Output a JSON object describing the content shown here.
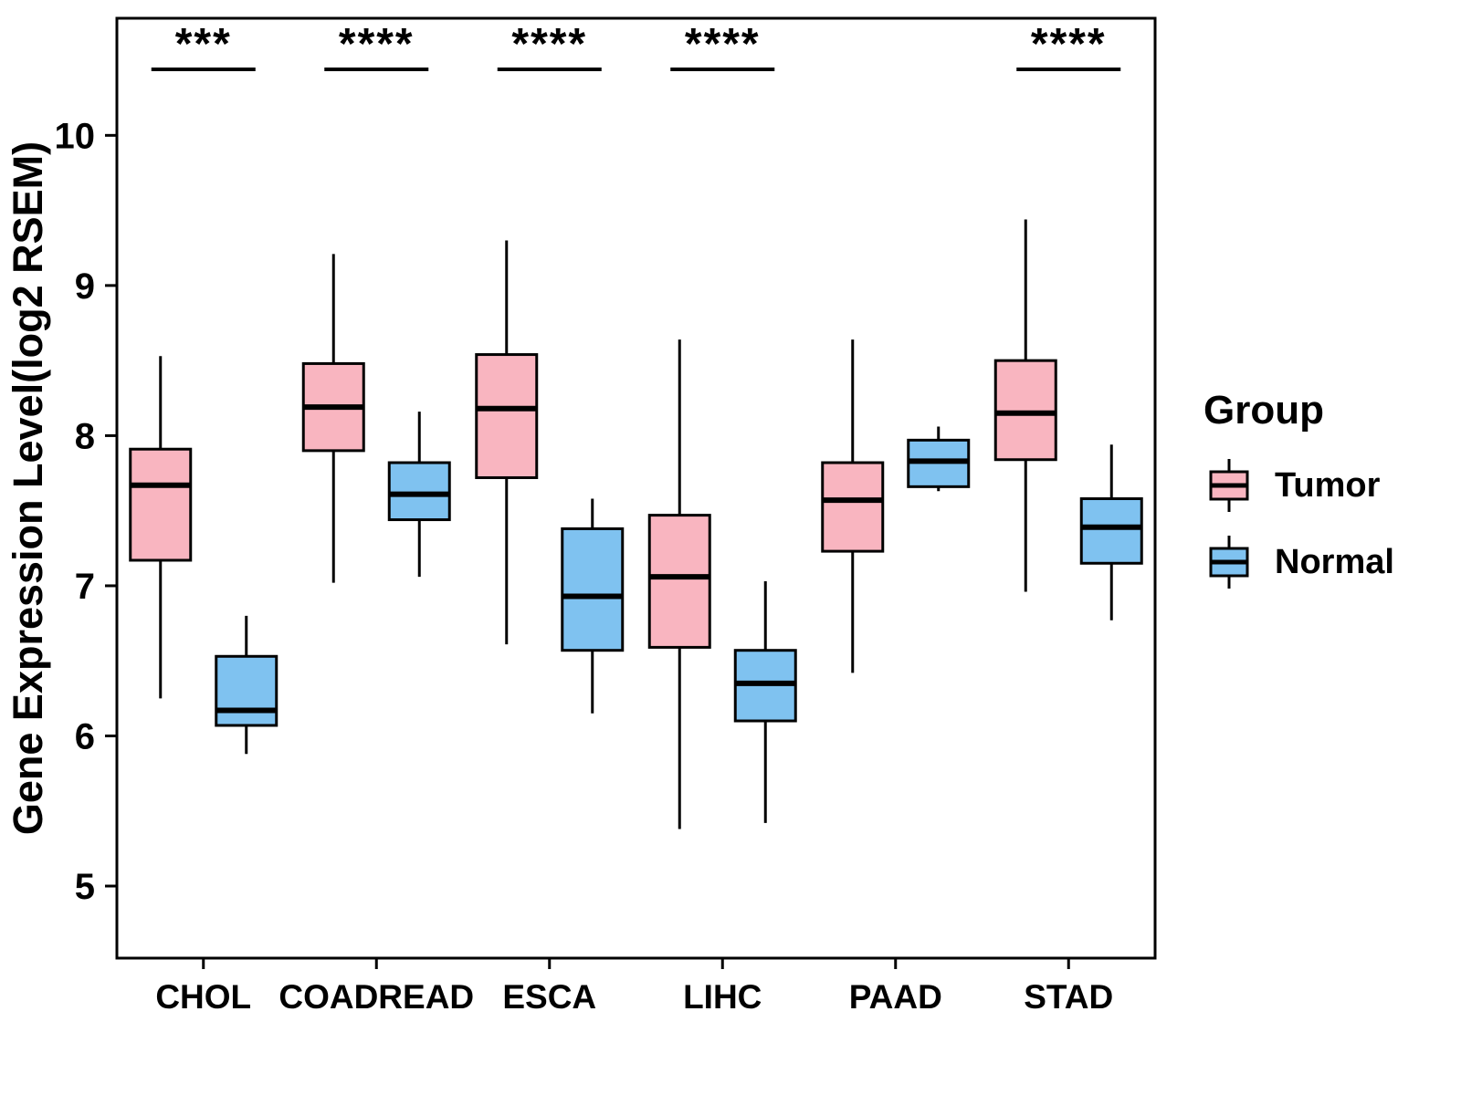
{
  "legend": {
    "title": "Group"
  },
  "chart_data": {
    "type": "boxplot",
    "title": "",
    "xlabel": "",
    "ylabel": "Gene Expression Level(log2 RSEM)",
    "ylim": [
      4.52,
      10.78
    ],
    "yticks": [
      5,
      6,
      7,
      8,
      9,
      10
    ],
    "grid": "off",
    "legend_position": "right",
    "categories": [
      "CHOL",
      "COADREAD",
      "ESCA",
      "LIHC",
      "PAAD",
      "STAD"
    ],
    "significance": [
      "***",
      "****",
      "****",
      "****",
      "",
      "****"
    ],
    "series": [
      {
        "name": "Tumor",
        "color": "#F9B5C0",
        "stats": [
          {
            "low": 6.25,
            "q1": 7.17,
            "median": 7.67,
            "q3": 7.91,
            "high": 8.53
          },
          {
            "low": 7.02,
            "q1": 7.9,
            "median": 8.19,
            "q3": 8.48,
            "high": 9.21
          },
          {
            "low": 6.61,
            "q1": 7.72,
            "median": 8.18,
            "q3": 8.54,
            "high": 9.3
          },
          {
            "low": 5.38,
            "q1": 6.59,
            "median": 7.06,
            "q3": 7.47,
            "high": 8.64
          },
          {
            "low": 6.42,
            "q1": 7.23,
            "median": 7.57,
            "q3": 7.82,
            "high": 8.64
          },
          {
            "low": 6.96,
            "q1": 7.84,
            "median": 8.15,
            "q3": 8.5,
            "high": 9.44
          }
        ]
      },
      {
        "name": "Normal",
        "color": "#7FC2F0",
        "stats": [
          {
            "low": 5.88,
            "q1": 6.07,
            "median": 6.17,
            "q3": 6.53,
            "high": 6.8
          },
          {
            "low": 7.06,
            "q1": 7.44,
            "median": 7.61,
            "q3": 7.82,
            "high": 8.16
          },
          {
            "low": 6.15,
            "q1": 6.57,
            "median": 6.93,
            "q3": 7.38,
            "high": 7.58
          },
          {
            "low": 5.42,
            "q1": 6.1,
            "median": 6.35,
            "q3": 6.57,
            "high": 7.03
          },
          {
            "low": 7.63,
            "q1": 7.66,
            "median": 7.83,
            "q3": 7.97,
            "high": 8.06
          },
          {
            "low": 6.77,
            "q1": 7.15,
            "median": 7.39,
            "q3": 7.58,
            "high": 7.94
          }
        ]
      }
    ]
  }
}
